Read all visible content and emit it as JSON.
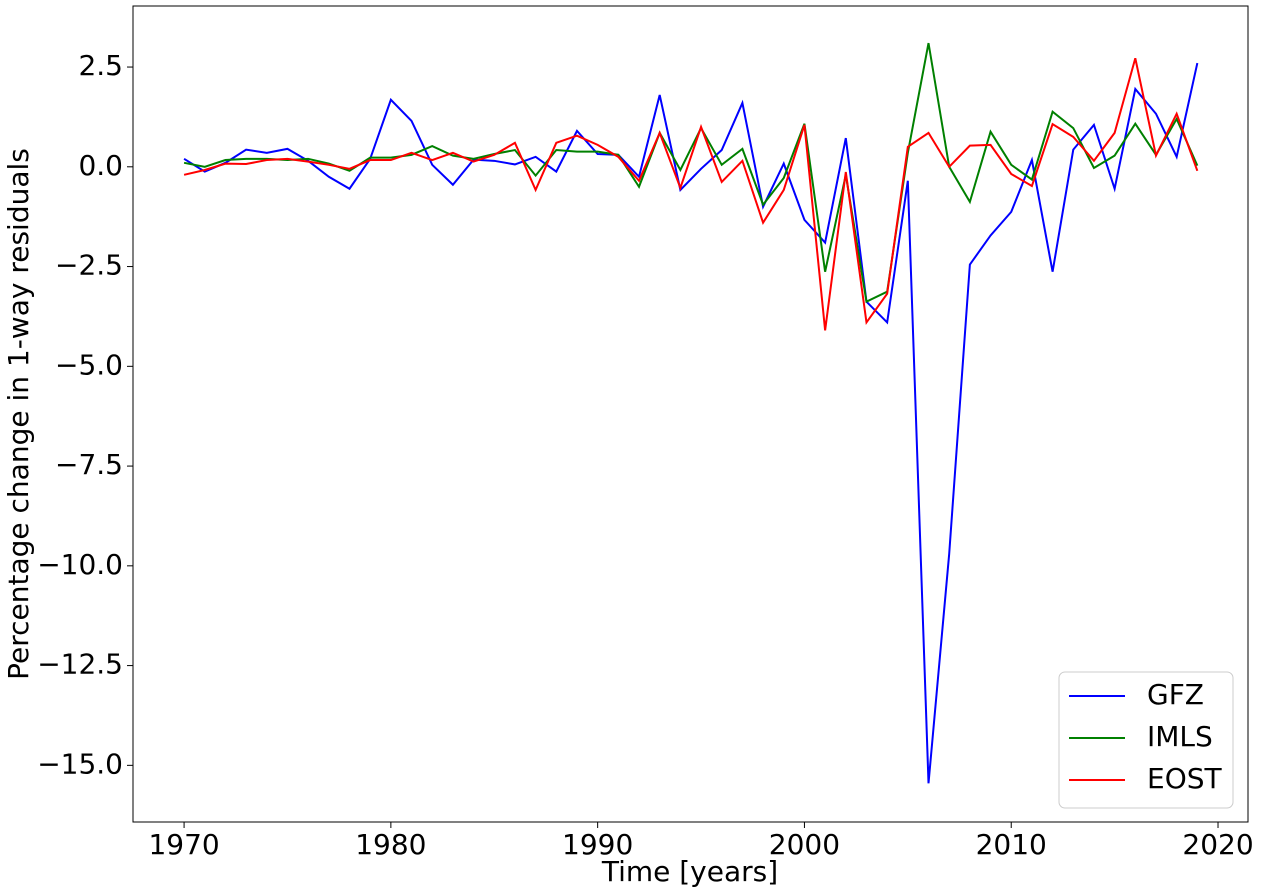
{
  "chart_data": {
    "type": "line",
    "xlabel": "Time [years]",
    "ylabel": "Percentage change in 1-way residuals",
    "x": [
      1970,
      1971,
      1972,
      1973,
      1974,
      1975,
      1976,
      1977,
      1978,
      1979,
      1980,
      1981,
      1982,
      1983,
      1984,
      1985,
      1986,
      1987,
      1988,
      1989,
      1990,
      1991,
      1992,
      1993,
      1994,
      1995,
      1996,
      1997,
      1998,
      1999,
      2000,
      2001,
      2002,
      2003,
      2004,
      2005,
      2006,
      2007,
      2008,
      2009,
      2010,
      2011,
      2012,
      2013,
      2014,
      2015,
      2016,
      2017,
      2018,
      2019
    ],
    "series": [
      {
        "name": "GFZ",
        "color": "#0000ff",
        "values": [
          0.2,
          -0.12,
          0.1,
          0.43,
          0.35,
          0.45,
          0.15,
          -0.25,
          -0.55,
          0.2,
          1.68,
          1.15,
          0.05,
          -0.45,
          0.18,
          0.15,
          0.06,
          0.25,
          -0.12,
          0.9,
          0.32,
          0.3,
          -0.25,
          1.8,
          -0.58,
          -0.05,
          0.42,
          1.6,
          -1.0,
          0.08,
          -1.33,
          -1.9,
          0.72,
          -3.38,
          -3.9,
          -0.35,
          -15.45,
          -9.7,
          -2.45,
          -1.72,
          -1.13,
          0.17,
          -2.63,
          0.43,
          1.05,
          -0.55,
          1.95,
          1.33,
          0.25,
          2.6
        ]
      },
      {
        "name": "IMLS",
        "color": "#008000",
        "values": [
          0.1,
          0.0,
          0.17,
          0.2,
          0.2,
          0.17,
          0.2,
          0.08,
          -0.1,
          0.23,
          0.23,
          0.3,
          0.52,
          0.28,
          0.2,
          0.32,
          0.42,
          -0.22,
          0.42,
          0.38,
          0.38,
          0.3,
          -0.5,
          0.85,
          -0.08,
          0.97,
          0.05,
          0.45,
          -0.95,
          -0.28,
          1.08,
          -2.63,
          -0.2,
          -3.38,
          -3.13,
          0.35,
          3.1,
          0.0,
          -0.88,
          0.88,
          0.05,
          -0.32,
          1.38,
          0.97,
          -0.03,
          0.28,
          1.08,
          0.3,
          1.2,
          0.03
        ]
      },
      {
        "name": "EOST",
        "color": "#ff0000",
        "values": [
          -0.2,
          -0.08,
          0.08,
          0.07,
          0.17,
          0.2,
          0.13,
          0.05,
          -0.05,
          0.17,
          0.17,
          0.35,
          0.17,
          0.35,
          0.13,
          0.3,
          0.6,
          -0.58,
          0.6,
          0.78,
          0.55,
          0.25,
          -0.35,
          0.85,
          -0.53,
          1.0,
          -0.38,
          0.15,
          -1.4,
          -0.58,
          1.05,
          -4.1,
          -0.13,
          -3.9,
          -3.18,
          0.5,
          0.85,
          0.0,
          0.53,
          0.55,
          -0.18,
          -0.48,
          1.07,
          0.75,
          0.15,
          0.85,
          2.72,
          0.28,
          1.33,
          -0.1
        ]
      }
    ],
    "xlim": [
      1967.53,
      2021.45
    ],
    "ylim": [
      -16.42,
      4.03
    ],
    "xticks": [
      1970,
      1980,
      1990,
      2000,
      2010,
      2020
    ],
    "yticks": [
      2.5,
      {
        "value": 0,
        "label": "0.0"
      },
      {
        "value": -2.5,
        "label": "−2.5"
      },
      {
        "value": -5,
        "label": "−5.0"
      },
      {
        "value": -7.5,
        "label": "−7.5"
      },
      {
        "value": -10,
        "label": "−10.0"
      },
      {
        "value": -12.5,
        "label": "−12.5"
      },
      {
        "value": -15,
        "label": "−15.0"
      }
    ],
    "grid": false,
    "legend": "lower right"
  }
}
